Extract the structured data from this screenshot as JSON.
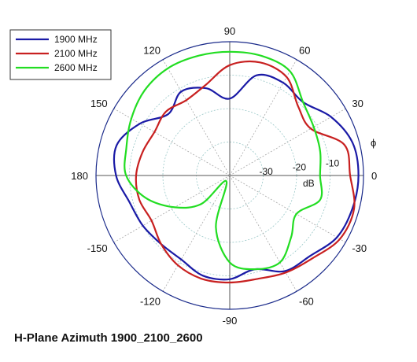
{
  "caption": "H-Plane Azimuth 1900_2100_2600",
  "chart_data": {
    "type": "polar",
    "title": "H-Plane Azimuth 1900_2100_2600",
    "angle_label": "ϕ",
    "radial_unit_label": "dB",
    "radial_range_db": [
      -40,
      0
    ],
    "radial_ticks": [
      "-30",
      "-20",
      "-10"
    ],
    "radial_tick_values": [
      -30,
      -20,
      -10
    ],
    "angle_ticks": [
      "0",
      "30",
      "60",
      "90",
      "120",
      "150",
      "180",
      "-150",
      "-120",
      "-90",
      "-60",
      "-30"
    ],
    "angle_tick_values": [
      0,
      30,
      60,
      90,
      120,
      150,
      180,
      -150,
      -120,
      -90,
      -60,
      -30
    ],
    "grid": true,
    "legend_position": "top-left",
    "angles_deg": [
      0,
      15,
      30,
      45,
      60,
      75,
      90,
      105,
      120,
      135,
      150,
      165,
      180,
      195,
      210,
      225,
      240,
      255,
      270,
      285,
      300,
      315,
      330,
      345
    ],
    "series": [
      {
        "name": "1900 MHz",
        "color": "#1a1aa6",
        "values_db": [
          -1.5,
          -2,
          -5,
          -9,
          -8,
          -9,
          -17,
          -13,
          -11,
          -14,
          -9,
          -5,
          -6,
          -9,
          -10,
          -11,
          -11,
          -9,
          -9,
          -11,
          -7,
          -6,
          -3,
          -2
        ]
      },
      {
        "name": "2100 MHz",
        "color": "#c82020",
        "values_db": [
          -4,
          -4.5,
          -12,
          -11,
          -6,
          -5,
          -7,
          -12,
          -14,
          -13,
          -14,
          -13,
          -12,
          -12,
          -13,
          -11,
          -9,
          -8,
          -8,
          -8,
          -6.5,
          -5,
          -2,
          -1.5
        ]
      },
      {
        "name": "2600 MHz",
        "color": "#22dd22",
        "values_db": [
          -13,
          -12,
          -11,
          -9,
          -4,
          -3,
          -3,
          -3,
          -3,
          -4,
          -6,
          -8,
          -9,
          -14,
          -21,
          -28,
          -38,
          -24,
          -14,
          -11,
          -10,
          -14,
          -17,
          -12
        ]
      }
    ]
  }
}
